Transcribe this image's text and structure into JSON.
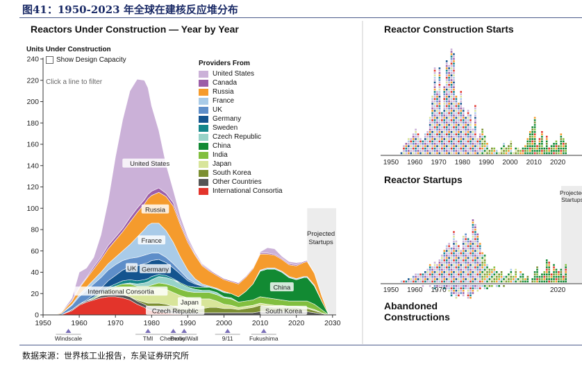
{
  "figure_title": "图41：1950-2023 年全球在建核反应堆分布",
  "source_note": "数据来源：世界核工业报告，东吴证券研究所",
  "left_panel": {
    "title": "Reactors Under Construction — Year by Year",
    "y_axis_title": "Units Under Construction",
    "checkbox_label": "Show Design Capacity",
    "hint": "Click a line to filter",
    "projected_label": "Projected Startups"
  },
  "legend": {
    "title": "Providers From",
    "items": [
      {
        "label": "United States",
        "color": "#cbb1d8"
      },
      {
        "label": "Canada",
        "color": "#9c5ea8"
      },
      {
        "label": "Russia",
        "color": "#f59b2d"
      },
      {
        "label": "France",
        "color": "#a9cbe8"
      },
      {
        "label": "UK",
        "color": "#5e8ec9"
      },
      {
        "label": "Germany",
        "color": "#14548f"
      },
      {
        "label": "Sweden",
        "color": "#13868a"
      },
      {
        "label": "Czech Republic",
        "color": "#97d3c8"
      },
      {
        "label": "China",
        "color": "#128a33"
      },
      {
        "label": "India",
        "color": "#82bf3f"
      },
      {
        "label": "Japan",
        "color": "#d8e59a"
      },
      {
        "label": "South Korea",
        "color": "#7c8f32"
      },
      {
        "label": "Other Countries",
        "color": "#555555"
      },
      {
        "label": "International Consortia",
        "color": "#e3342b"
      }
    ]
  },
  "events": [
    {
      "label": "Windscale",
      "year": 1957
    },
    {
      "label": "TMI",
      "year": 1979
    },
    {
      "label": "Chernobyl",
      "year": 1986
    },
    {
      "label": "Berlin Wall",
      "year": 1989
    },
    {
      "label": "9/11",
      "year": 2001
    },
    {
      "label": "Fukushima",
      "year": 2011
    }
  ],
  "area_labels": [
    {
      "text": "United States",
      "year": 1979.5,
      "value": 142
    },
    {
      "text": "Russia",
      "year": 1981,
      "value": 99
    },
    {
      "text": "France",
      "year": 1980,
      "value": 70
    },
    {
      "text": "UK",
      "year": 1974.5,
      "value": 44
    },
    {
      "text": "Germany",
      "year": 1981,
      "value": 43
    },
    {
      "text": "International Consortia",
      "year": 1971.5,
      "value": 22
    },
    {
      "text": "Japan",
      "year": 1990.5,
      "value": 12
    },
    {
      "text": "Czech Republic",
      "year": 1986.5,
      "value": 4
    },
    {
      "text": "China",
      "year": 2016,
      "value": 26
    },
    {
      "text": "South Korea",
      "year": 2016.5,
      "value": 4
    }
  ],
  "chart_data": [
    {
      "type": "area",
      "title": "Reactors Under Construction — Year by Year",
      "ylabel": "Units Under Construction",
      "xlim": [
        1950,
        2031
      ],
      "ylim": [
        0,
        240
      ],
      "y_ticks": [
        0,
        20,
        40,
        60,
        80,
        100,
        120,
        140,
        160,
        180,
        200,
        220,
        240
      ],
      "x_ticks": [
        1950,
        1960,
        1970,
        1980,
        1990,
        2000,
        2010,
        2020,
        2030
      ],
      "projected_range": [
        2023,
        2031
      ],
      "x": [
        1950,
        1953,
        1955,
        1958,
        1960,
        1962,
        1964,
        1966,
        1968,
        1970,
        1972,
        1974,
        1976,
        1978,
        1979,
        1980,
        1982,
        1984,
        1986,
        1988,
        1990,
        1992,
        1994,
        1996,
        1998,
        2000,
        2002,
        2004,
        2006,
        2008,
        2010,
        2012,
        2014,
        2016,
        2018,
        2020,
        2022,
        2023,
        2025,
        2027,
        2029
      ],
      "series": [
        {
          "name": "International Consortia",
          "values": [
            0,
            0,
            0,
            4,
            9,
            12,
            14,
            16,
            17,
            17,
            16,
            14,
            10,
            7,
            5,
            4,
            3,
            2,
            1,
            1,
            0,
            0,
            0,
            0,
            0,
            0,
            0,
            0,
            0,
            0,
            0,
            0,
            0,
            0,
            0,
            0,
            0,
            0,
            0,
            0,
            0
          ]
        },
        {
          "name": "Other Countries",
          "values": [
            0,
            0,
            0,
            1,
            1,
            1,
            1,
            2,
            2,
            3,
            3,
            3,
            3,
            3,
            3,
            3,
            3,
            3,
            3,
            2,
            2,
            2,
            2,
            2,
            2,
            2,
            2,
            2,
            2,
            2,
            3,
            3,
            3,
            3,
            3,
            3,
            3,
            3,
            2,
            1,
            0
          ]
        },
        {
          "name": "South Korea",
          "values": [
            0,
            0,
            0,
            0,
            0,
            0,
            0,
            0,
            0,
            0,
            0,
            0,
            1,
            2,
            3,
            4,
            5,
            5,
            4,
            3,
            3,
            3,
            4,
            5,
            5,
            4,
            4,
            3,
            4,
            5,
            6,
            5,
            4,
            4,
            4,
            4,
            3,
            3,
            2,
            1,
            0
          ]
        },
        {
          "name": "Japan",
          "values": [
            0,
            0,
            0,
            0,
            0,
            0,
            0,
            1,
            3,
            5,
            7,
            9,
            10,
            11,
            12,
            13,
            14,
            14,
            13,
            12,
            11,
            10,
            9,
            8,
            6,
            4,
            3,
            2,
            2,
            2,
            2,
            2,
            2,
            2,
            1,
            1,
            1,
            1,
            1,
            0,
            0
          ]
        },
        {
          "name": "India",
          "values": [
            0,
            0,
            0,
            0,
            0,
            0,
            1,
            1,
            2,
            2,
            3,
            3,
            3,
            4,
            4,
            4,
            5,
            5,
            6,
            6,
            6,
            6,
            6,
            6,
            6,
            6,
            6,
            5,
            5,
            5,
            6,
            6,
            6,
            5,
            5,
            5,
            6,
            6,
            5,
            3,
            0
          ]
        },
        {
          "name": "Czech Republic",
          "values": [
            0,
            0,
            0,
            0,
            0,
            0,
            0,
            0,
            0,
            0,
            0,
            1,
            2,
            3,
            4,
            5,
            6,
            6,
            6,
            5,
            4,
            3,
            2,
            2,
            2,
            1,
            1,
            0,
            0,
            0,
            0,
            0,
            0,
            0,
            0,
            0,
            0,
            0,
            0,
            0,
            0
          ]
        },
        {
          "name": "China",
          "values": [
            0,
            0,
            0,
            0,
            0,
            0,
            0,
            0,
            0,
            0,
            0,
            0,
            0,
            0,
            0,
            0,
            0,
            0,
            0,
            1,
            1,
            2,
            3,
            3,
            3,
            4,
            4,
            5,
            9,
            15,
            24,
            27,
            28,
            26,
            22,
            20,
            22,
            22,
            17,
            8,
            0
          ]
        },
        {
          "name": "Sweden",
          "values": [
            0,
            0,
            0,
            0,
            0,
            0,
            1,
            1,
            2,
            2,
            3,
            3,
            3,
            3,
            3,
            3,
            2,
            2,
            1,
            0,
            0,
            0,
            0,
            0,
            0,
            0,
            0,
            0,
            0,
            0,
            0,
            0,
            0,
            0,
            0,
            0,
            0,
            0,
            0,
            0,
            0
          ]
        },
        {
          "name": "Germany",
          "values": [
            0,
            0,
            0,
            0,
            0,
            1,
            2,
            4,
            6,
            8,
            10,
            12,
            14,
            15,
            15,
            15,
            14,
            12,
            10,
            8,
            5,
            3,
            1,
            0,
            0,
            0,
            0,
            0,
            0,
            0,
            0,
            0,
            0,
            0,
            0,
            0,
            0,
            0,
            0,
            0,
            0
          ]
        },
        {
          "name": "UK",
          "values": [
            0,
            0,
            1,
            4,
            7,
            9,
            10,
            10,
            10,
            10,
            9,
            8,
            8,
            8,
            8,
            7,
            6,
            5,
            4,
            3,
            2,
            1,
            0,
            0,
            0,
            0,
            0,
            0,
            0,
            0,
            0,
            0,
            0,
            0,
            0,
            0,
            0,
            0,
            0,
            0,
            0
          ]
        },
        {
          "name": "France",
          "values": [
            0,
            0,
            0,
            1,
            2,
            3,
            4,
            5,
            6,
            7,
            9,
            13,
            19,
            24,
            27,
            28,
            28,
            25,
            20,
            13,
            8,
            4,
            2,
            1,
            1,
            1,
            0,
            0,
            0,
            0,
            1,
            1,
            1,
            1,
            1,
            1,
            1,
            1,
            1,
            0,
            0
          ]
        },
        {
          "name": "Russia",
          "values": [
            0,
            0,
            1,
            3,
            6,
            8,
            10,
            12,
            14,
            16,
            18,
            21,
            23,
            24,
            25,
            26,
            29,
            32,
            34,
            30,
            26,
            22,
            17,
            14,
            12,
            11,
            11,
            12,
            13,
            14,
            15,
            13,
            12,
            11,
            11,
            12,
            13,
            14,
            11,
            5,
            0
          ]
        },
        {
          "name": "Canada",
          "values": [
            0,
            0,
            0,
            0,
            1,
            1,
            2,
            2,
            3,
            3,
            3,
            4,
            4,
            4,
            4,
            4,
            4,
            3,
            3,
            2,
            2,
            1,
            1,
            1,
            1,
            1,
            1,
            1,
            1,
            1,
            1,
            1,
            1,
            1,
            1,
            1,
            1,
            1,
            0,
            0,
            0
          ]
        },
        {
          "name": "United States",
          "values": [
            0,
            0,
            0,
            3,
            14,
            9,
            9,
            21,
            42,
            75,
            102,
            119,
            121,
            112,
            100,
            80,
            54,
            27,
            12,
            6,
            3,
            2,
            1,
            1,
            0,
            0,
            0,
            0,
            0,
            0,
            1,
            5,
            5,
            2,
            2,
            2,
            0,
            0,
            0,
            0,
            0
          ]
        }
      ]
    },
    {
      "type": "scatter",
      "title": "Reactor Construction Starts",
      "x_ticks": [
        1950,
        1960,
        1970,
        1980,
        1990,
        2000,
        2010,
        2020
      ],
      "years": [
        1954,
        1955,
        1956,
        1957,
        1958,
        1959,
        1960,
        1961,
        1962,
        1963,
        1964,
        1965,
        1966,
        1967,
        1968,
        1969,
        1970,
        1971,
        1972,
        1973,
        1974,
        1975,
        1976,
        1977,
        1978,
        1979,
        1980,
        1981,
        1982,
        1983,
        1984,
        1985,
        1986,
        1987,
        1988,
        1989,
        1990,
        1991,
        1992,
        1993,
        1994,
        1995,
        1996,
        1997,
        1998,
        1999,
        2000,
        2001,
        2002,
        2003,
        2004,
        2005,
        2006,
        2007,
        2008,
        2009,
        2010,
        2011,
        2012,
        2013,
        2014,
        2015,
        2016,
        2017,
        2018,
        2019,
        2020,
        2021,
        2022,
        2023
      ],
      "counts": [
        1,
        4,
        5,
        7,
        7,
        9,
        11,
        9,
        7,
        6,
        9,
        10,
        16,
        25,
        37,
        27,
        37,
        18,
        29,
        40,
        38,
        45,
        43,
        25,
        22,
        27,
        20,
        16,
        19,
        17,
        11,
        21,
        7,
        9,
        11,
        8,
        5,
        2,
        3,
        3,
        2,
        1,
        3,
        5,
        3,
        4,
        6,
        1,
        3,
        3,
        2,
        3,
        4,
        7,
        10,
        12,
        16,
        4,
        7,
        10,
        3,
        8,
        3,
        4,
        5,
        6,
        4,
        9,
        7,
        5
      ]
    },
    {
      "type": "scatter",
      "title": "Reactor Startups",
      "secondary_title": "Abandoned Constructions",
      "projected_label": "Projected Startups",
      "x_ticks": [
        1950,
        1960,
        1970,
        2020
      ],
      "years": [
        1954,
        1955,
        1956,
        1957,
        1958,
        1959,
        1960,
        1961,
        1962,
        1963,
        1964,
        1965,
        1966,
        1967,
        1968,
        1969,
        1970,
        1971,
        1972,
        1973,
        1974,
        1975,
        1976,
        1977,
        1978,
        1979,
        1980,
        1981,
        1982,
        1983,
        1984,
        1985,
        1986,
        1987,
        1988,
        1989,
        1990,
        1991,
        1992,
        1993,
        1994,
        1995,
        1996,
        1997,
        1998,
        1999,
        2000,
        2001,
        2002,
        2003,
        2004,
        2005,
        2006,
        2007,
        2008,
        2009,
        2010,
        2011,
        2012,
        2013,
        2014,
        2015,
        2016,
        2017,
        2018,
        2019,
        2020,
        2021,
        2022,
        2023
      ],
      "startups": [
        1,
        1,
        1,
        2,
        2,
        3,
        4,
        4,
        4,
        4,
        5,
        6,
        8,
        7,
        9,
        8,
        10,
        12,
        14,
        16,
        17,
        15,
        22,
        18,
        16,
        14,
        20,
        21,
        19,
        18,
        27,
        25,
        21,
        17,
        13,
        12,
        8,
        6,
        6,
        7,
        5,
        4,
        5,
        3,
        3,
        4,
        6,
        3,
        6,
        2,
        5,
        4,
        2,
        3,
        0,
        2,
        5,
        7,
        3,
        4,
        5,
        10,
        9,
        4,
        8,
        6,
        5,
        6,
        3,
        8
      ],
      "abandoned": [
        0,
        0,
        0,
        0,
        0,
        0,
        0,
        0,
        0,
        1,
        0,
        0,
        1,
        0,
        2,
        1,
        1,
        1,
        2,
        2,
        3,
        5,
        4,
        6,
        5,
        4,
        5,
        2,
        6,
        6,
        4,
        2,
        3,
        2,
        1,
        2,
        2,
        1,
        1,
        0,
        1,
        1,
        0,
        1,
        0,
        0,
        0,
        0,
        0,
        0,
        0,
        0,
        0,
        0,
        0,
        0,
        0,
        0,
        0,
        0,
        0,
        0,
        0,
        0,
        0,
        0,
        0,
        0,
        0,
        0
      ]
    }
  ]
}
